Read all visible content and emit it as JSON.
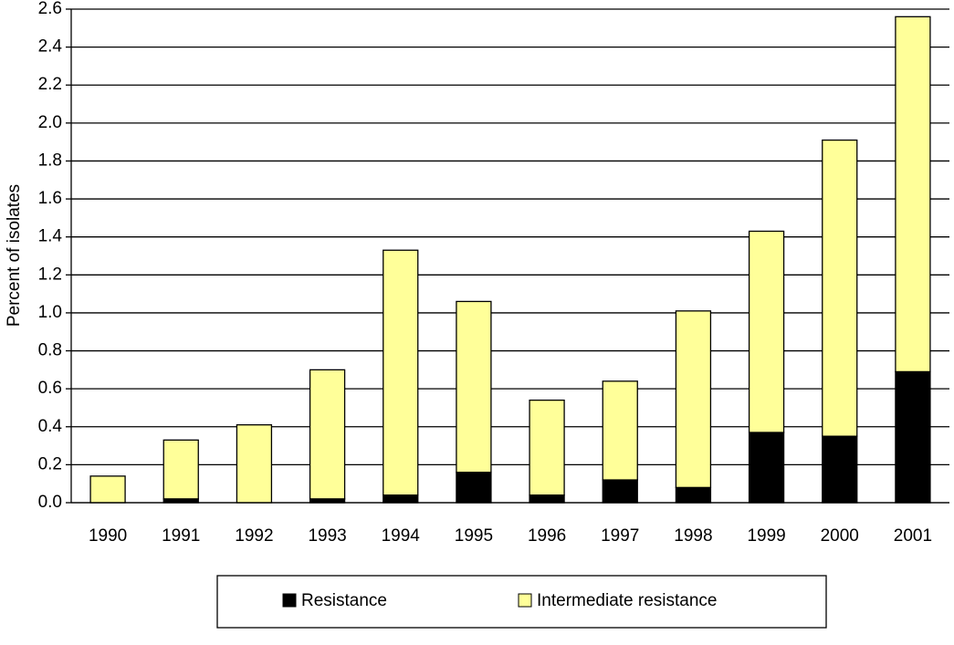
{
  "chart_data": {
    "type": "stacked_bar",
    "y_label": "Percent of isolates",
    "categories": [
      "1990",
      "1991",
      "1992",
      "1993",
      "1994",
      "1995",
      "1996",
      "1997",
      "1998",
      "1999",
      "2000",
      "2001"
    ],
    "series": [
      {
        "name": "Resistance",
        "color": "#000000",
        "values": [
          0,
          0.02,
          0,
          0.02,
          0.04,
          0.16,
          0.04,
          0.12,
          0.08,
          0.37,
          0.35,
          0.69
        ]
      },
      {
        "name": "Intermediate resistance",
        "color": "#ffff99",
        "values": [
          0.14,
          0.31,
          0.41,
          0.68,
          1.29,
          0.9,
          0.5,
          0.52,
          0.93,
          1.06,
          1.56,
          1.87
        ]
      }
    ],
    "ylim": [
      0,
      2.6
    ],
    "yticks": [
      {
        "value": 0,
        "label": "0.0"
      },
      0.2,
      0.4,
      0.6,
      0.8,
      {
        "value": 1,
        "label": "1.0"
      },
      1.2,
      1.4,
      1.6,
      1.8,
      {
        "value": 2,
        "label": "2.0"
      },
      2.2,
      2.4,
      2.6
    ],
    "grid": true,
    "legend": "bottom"
  }
}
